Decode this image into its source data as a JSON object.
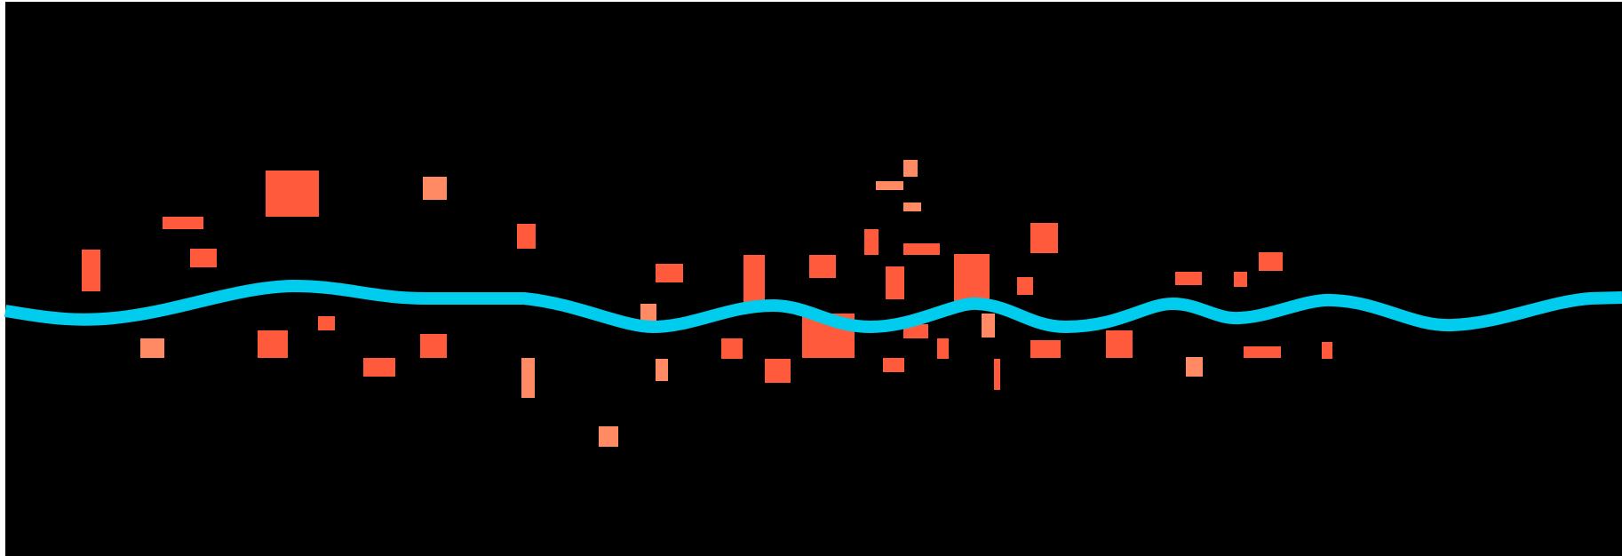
{
  "game": {
    "colors": {
      "background": "#000000",
      "wave": "#00ccee",
      "block_primary": "#ff5a3c",
      "block_secondary": "#ff8a63"
    },
    "objects": {
      "wave": "wave-line",
      "blocks": "obstacle-blocks"
    }
  }
}
